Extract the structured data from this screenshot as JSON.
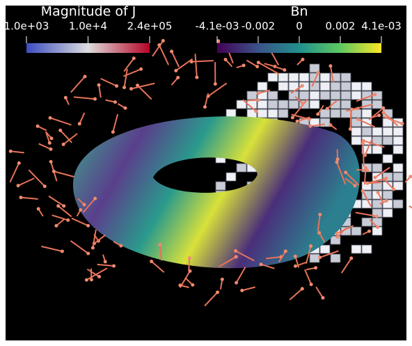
{
  "colorbars": [
    {
      "title": "Magnitude of J",
      "labels": [
        "1.0e+03",
        "1.0e+4",
        "2.4e+05"
      ]
    },
    {
      "title": "Bn",
      "labels": [
        "-4.1e-03",
        "-0.002",
        "0",
        "0.002",
        "4.1e-03"
      ]
    }
  ]
}
